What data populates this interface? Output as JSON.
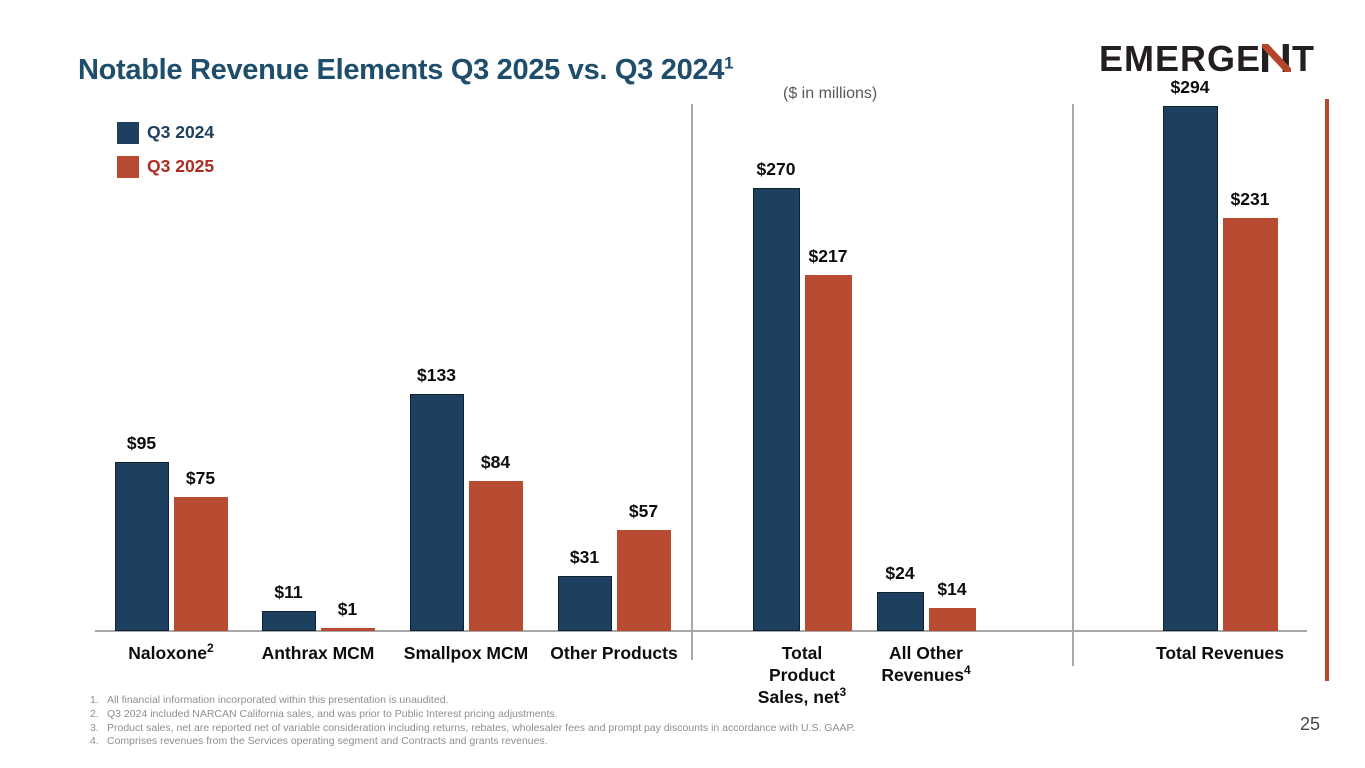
{
  "slide": {
    "title": "Notable Revenue Elements Q3 2025 vs. Q3 2024",
    "title_superscript": "1",
    "units_note": "($ in millions)",
    "page_number": "25",
    "logo": {
      "prefix": "EMERGE",
      "n_letter": "N",
      "suffix": "T"
    }
  },
  "colors": {
    "title": "#1e4e6c",
    "q3_2024_bar": "#1d4060",
    "q3_2024_bar_border": "#0f2230",
    "q3_2025_bar": "#b84b31",
    "legend_2024_text": "#1d4060",
    "legend_2025_text": "#b02c20",
    "axis_and_dividers": "#a8a8a8",
    "accent_bar": "#b4492e",
    "footnote_text": "#8f8f8f",
    "units_note_text": "#595959",
    "logo_black": "#231f20",
    "logo_red": "#b5452c"
  },
  "chart_data": {
    "type": "bar",
    "title": "Notable Revenue Elements Q3 2025 vs. Q3 2024",
    "units": "$ in millions",
    "value_prefix": "$",
    "legend_position": "top-left",
    "grid": false,
    "y_axis_hidden": true,
    "series": [
      {
        "name": "Q3 2024",
        "color": "#1d4060",
        "label_color": "#1d4060"
      },
      {
        "name": "Q3 2025",
        "color": "#b84b31",
        "label_color": "#b02c20"
      }
    ],
    "groups": [
      {
        "label": "Naloxone",
        "sup": "2",
        "panel": 0,
        "values": [
          95,
          75
        ],
        "value_labels": [
          "$95",
          "$75"
        ]
      },
      {
        "label": "Anthrax MCM",
        "sup": "",
        "panel": 0,
        "values": [
          11,
          1
        ],
        "value_labels": [
          "$11",
          "$1"
        ]
      },
      {
        "label": "Smallpox MCM",
        "sup": "",
        "panel": 0,
        "values": [
          133,
          84
        ],
        "value_labels": [
          "$133",
          "$84"
        ]
      },
      {
        "label": "Other Products",
        "sup": "",
        "panel": 0,
        "values": [
          31,
          57
        ],
        "value_labels": [
          "$31",
          "$57"
        ]
      },
      {
        "label": "Total Product Sales, net",
        "sup": "3",
        "panel": 1,
        "values": [
          270,
          217
        ],
        "value_labels": [
          "$270",
          "$217"
        ]
      },
      {
        "label": "All Other Revenues",
        "sup": "4",
        "panel": 1,
        "values": [
          24,
          14
        ],
        "value_labels": [
          "$24",
          "$14"
        ]
      },
      {
        "label": "Total Revenues",
        "sup": "",
        "panel": 2,
        "values": [
          294,
          231
        ],
        "value_labels": [
          "$294",
          "$231"
        ]
      }
    ]
  },
  "footnotes": [
    {
      "num": "1.",
      "text": "All financial information incorporated within this presentation is unaudited."
    },
    {
      "num": "2.",
      "text": "Q3 2024 included NARCAN California sales, and was prior to Public Interest pricing adjustments."
    },
    {
      "num": "3.",
      "text": "Product sales, net are reported net of variable consideration including returns, rebates, wholesaler fees and prompt pay discounts in accordance with U.S. GAAP."
    },
    {
      "num": "4.",
      "text": "Comprises revenues from the Services operating segment and Contracts and grants revenues."
    }
  ]
}
